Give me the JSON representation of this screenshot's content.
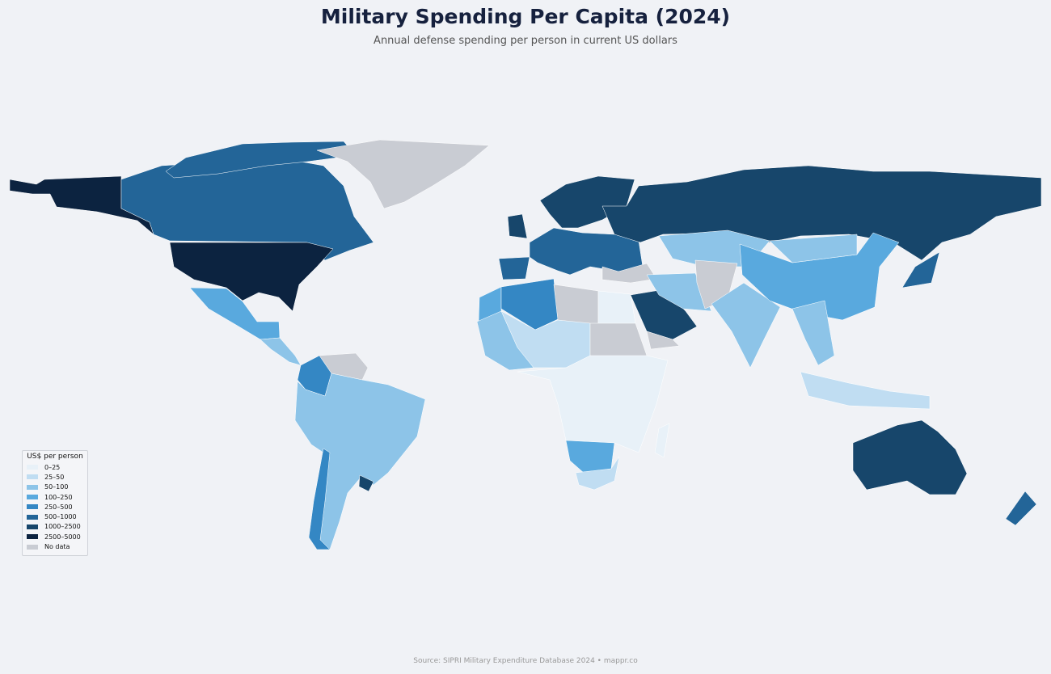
{
  "title": "Military Spending Per Capita (2024)",
  "subtitle": "Annual defense spending per person in current US dollars",
  "source": "Source: SIPRI Military Expenditure Database 2024  •  mappr.co",
  "legend": {
    "title": "US$ per person",
    "bins": [
      {
        "label": "0–25",
        "color": "#e8f1f8"
      },
      {
        "label": "25–50",
        "color": "#c0ddf2"
      },
      {
        "label": "50–100",
        "color": "#8dc4e8"
      },
      {
        "label": "100–250",
        "color": "#59a9de"
      },
      {
        "label": "250–500",
        "color": "#3487c4"
      },
      {
        "label": "500–1000",
        "color": "#236598"
      },
      {
        "label": "1000–2500",
        "color": "#17466b"
      },
      {
        "label": "2500–5000",
        "color": "#0c2340"
      },
      {
        "label": "No data",
        "color": "#c9ccd3"
      }
    ]
  },
  "map": {
    "background": "#f0f2f6",
    "regions": [
      {
        "region": "Alaska (USA)",
        "bin": 7
      },
      {
        "region": "Canada",
        "bin": 5
      },
      {
        "region": "Canadian Arctic islands",
        "bin": 5
      },
      {
        "region": "Greenland",
        "bin": 8
      },
      {
        "region": "United States",
        "bin": 7
      },
      {
        "region": "Mexico",
        "bin": 3
      },
      {
        "region": "Central America",
        "bin": 2
      },
      {
        "region": "Venezuela",
        "bin": 8
      },
      {
        "region": "Colombia",
        "bin": 4
      },
      {
        "region": "Brazil and South America",
        "bin": 2
      },
      {
        "region": "Chile",
        "bin": 4
      },
      {
        "region": "Uruguay",
        "bin": 6
      },
      {
        "region": "Scandinavia",
        "bin": 6
      },
      {
        "region": "United Kingdom",
        "bin": 6
      },
      {
        "region": "Europe",
        "bin": 5
      },
      {
        "region": "Iberia",
        "bin": 5
      },
      {
        "region": "Russia",
        "bin": 6
      },
      {
        "region": "Turkey",
        "bin": 8
      },
      {
        "region": "Morocco",
        "bin": 3
      },
      {
        "region": "Algeria",
        "bin": 4
      },
      {
        "region": "Libya",
        "bin": 8
      },
      {
        "region": "Egypt",
        "bin": 0
      },
      {
        "region": "Sahel",
        "bin": 1
      },
      {
        "region": "West Africa",
        "bin": 2
      },
      {
        "region": "Sudan",
        "bin": 8
      },
      {
        "region": "Central and East Africa",
        "bin": 0
      },
      {
        "region": "Namibia and Botswana",
        "bin": 3
      },
      {
        "region": "South Africa",
        "bin": 1
      },
      {
        "region": "Madagascar",
        "bin": 0
      },
      {
        "region": "Saudi Arabia",
        "bin": 6
      },
      {
        "region": "Yemen",
        "bin": 8
      },
      {
        "region": "Central Asia",
        "bin": 2
      },
      {
        "region": "Iran",
        "bin": 2
      },
      {
        "region": "Afghanistan and Pakistan",
        "bin": 8
      },
      {
        "region": "India",
        "bin": 2
      },
      {
        "region": "China",
        "bin": 3
      },
      {
        "region": "Mongolia",
        "bin": 2
      },
      {
        "region": "Japan",
        "bin": 5
      },
      {
        "region": "Southeast Asia",
        "bin": 2
      },
      {
        "region": "Indonesia",
        "bin": 1
      },
      {
        "region": "Australia",
        "bin": 6
      },
      {
        "region": "New Zealand",
        "bin": 5
      }
    ]
  }
}
